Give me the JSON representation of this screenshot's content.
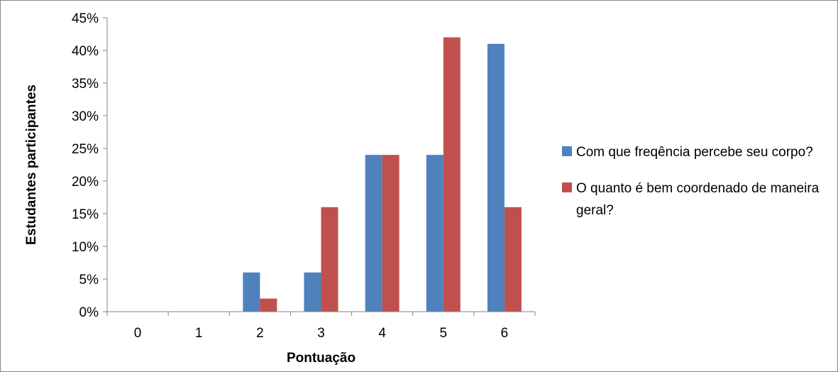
{
  "chart_data": {
    "type": "bar",
    "categories": [
      "0",
      "1",
      "2",
      "3",
      "4",
      "5",
      "6"
    ],
    "series": [
      {
        "name": "Com que freqência percebe seu corpo?",
        "values": [
          0,
          0,
          6,
          6,
          24,
          24,
          41
        ],
        "color": "#4F81BD"
      },
      {
        "name": "O quanto é bem coordenado de maneira geral?",
        "values": [
          0,
          0,
          2,
          16,
          24,
          42,
          16
        ],
        "color": "#C0504D"
      }
    ],
    "title": "",
    "xlabel": "Pontuação",
    "ylabel": "Estudantes participantes",
    "ylim": [
      0,
      45
    ],
    "yticks": [
      "0%",
      "5%",
      "10%",
      "15%",
      "20%",
      "25%",
      "30%",
      "35%",
      "40%",
      "45%"
    ],
    "grid": false,
    "legend": "right"
  }
}
